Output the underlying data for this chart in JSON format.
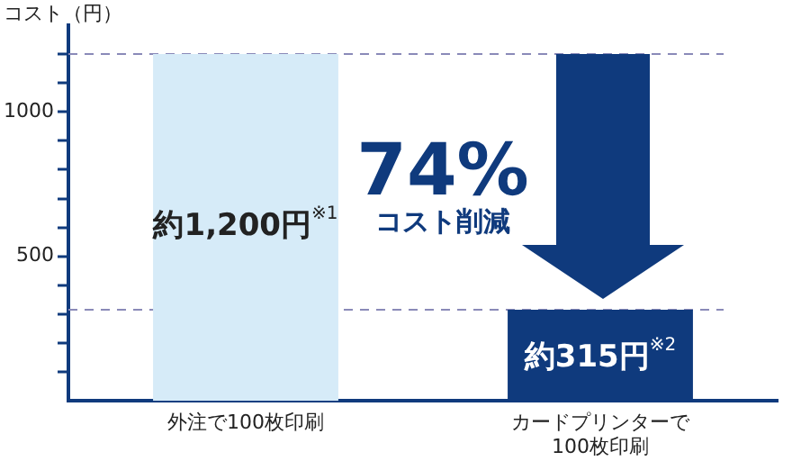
{
  "chart_data": {
    "type": "bar",
    "ylabel": "コスト（円）",
    "categories": [
      "外注で100枚印刷",
      "カードプリンターで\n100枚印刷"
    ],
    "values": [
      1200,
      315
    ],
    "colors": [
      "#d6ebf8",
      "#0f3a7d"
    ],
    "value_labels": [
      "約1,200円$^{※1}$",
      "約315円$^{※2}$"
    ],
    "ylim": [
      0,
      1300
    ],
    "yticks": [
      {
        "value": 100,
        "label": null
      },
      {
        "value": 200,
        "label": null
      },
      {
        "value": 300,
        "label": null
      },
      {
        "value": 400,
        "label": null
      },
      500,
      {
        "value": 600,
        "label": null
      },
      {
        "value": 700,
        "label": null
      },
      {
        "value": 800,
        "label": null
      },
      {
        "value": 900,
        "label": null
      },
      1000,
      {
        "value": 1100,
        "label": null
      },
      {
        "value": 1200,
        "label": null
      }
    ],
    "ref_lines": [
      {
        "axis": "y",
        "value": 1200,
        "color": "#8a8ab8",
        "line_style": "dashed"
      },
      {
        "axis": "y",
        "value": 315,
        "color": "#8a8ab8",
        "line_style": "dashed"
      }
    ],
    "annotations": [
      "74%",
      "コスト削減"
    ],
    "grid": false,
    "legend": false
  }
}
